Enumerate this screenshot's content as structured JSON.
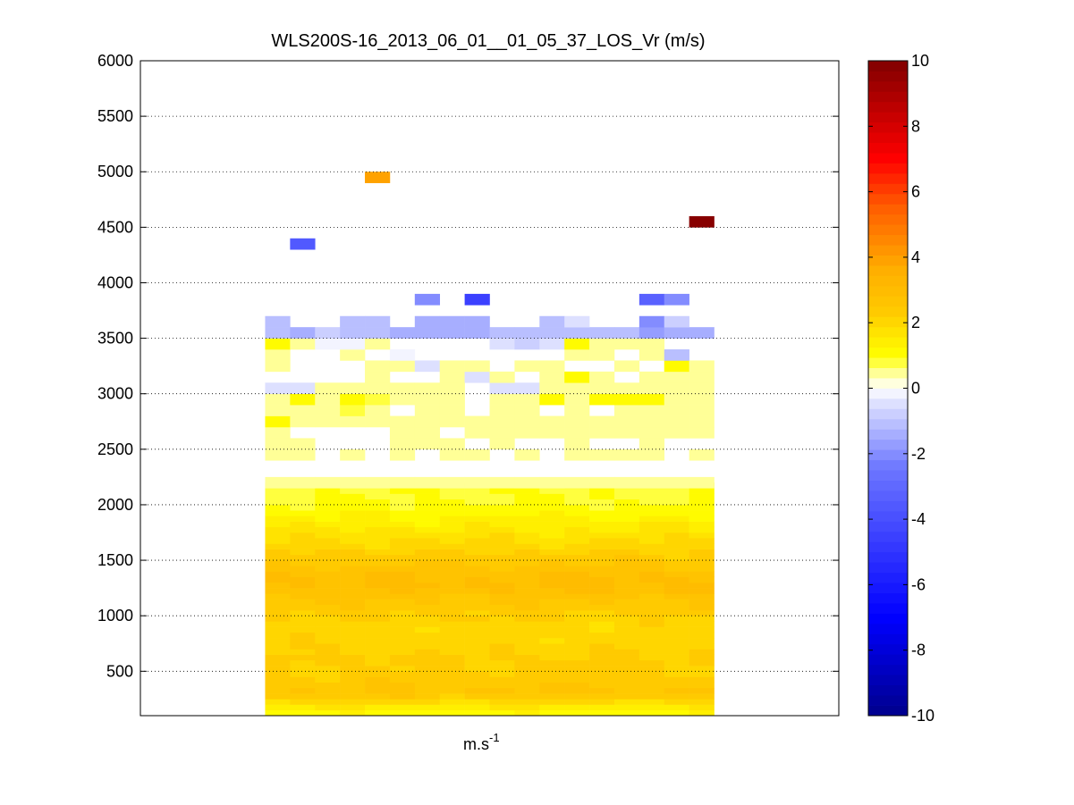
{
  "chart_data": {
    "type": "heatmap",
    "title": "WLS200S-16_2013_06_01__01_05_37_LOS_Vr (m/s)",
    "xlabel_base": "m.s",
    "xlabel_exp": "-1",
    "ylabel": "",
    "ylim": [
      100,
      6000
    ],
    "yticks": [
      500,
      1000,
      1500,
      2000,
      2500,
      3000,
      3500,
      4000,
      4500,
      5000,
      5500,
      6000
    ],
    "grid": "horizontal dotted",
    "colorbar": {
      "range": [
        -10,
        10
      ],
      "ticks": [
        -10,
        -8,
        -6,
        -4,
        -2,
        0,
        2,
        4,
        6,
        8,
        10
      ],
      "placement": "right"
    },
    "n_columns": 18,
    "column_range": [
      5,
      23
    ],
    "x_range": [
      0,
      28
    ],
    "low_layers": {
      "y_start": 100,
      "y_end": 2200,
      "step": 50,
      "profile": [
        [
          100,
          0.9
        ],
        [
          200,
          1.7
        ],
        [
          300,
          2.6
        ],
        [
          400,
          2.4
        ],
        [
          500,
          2.2
        ],
        [
          600,
          2.3
        ],
        [
          700,
          2.1
        ],
        [
          800,
          2.0
        ],
        [
          900,
          2.0
        ],
        [
          1000,
          2.2
        ],
        [
          1100,
          2.4
        ],
        [
          1200,
          2.7
        ],
        [
          1300,
          2.9
        ],
        [
          1400,
          2.7
        ],
        [
          1500,
          2.4
        ],
        [
          1600,
          2.1
        ],
        [
          1700,
          1.8
        ],
        [
          1800,
          1.5
        ],
        [
          1900,
          1.2
        ],
        [
          2000,
          1.0
        ],
        [
          2100,
          0.9
        ],
        [
          2200,
          0.9
        ]
      ]
    },
    "cells": [
      [
        5,
        2200,
        0.6
      ],
      [
        6,
        2200,
        0.6
      ],
      [
        7,
        2200,
        0.6
      ],
      [
        8,
        2200,
        0.6
      ],
      [
        9,
        2200,
        0.6
      ],
      [
        10,
        2200,
        0.6
      ],
      [
        11,
        2200,
        0.6
      ],
      [
        12,
        2200,
        0.6
      ],
      [
        13,
        2200,
        0.6
      ],
      [
        14,
        2200,
        0.6
      ],
      [
        15,
        2200,
        0.6
      ],
      [
        16,
        2200,
        0.6
      ],
      [
        17,
        2200,
        0.6
      ],
      [
        18,
        2200,
        0.6
      ],
      [
        19,
        2200,
        0.6
      ],
      [
        20,
        2200,
        0.6
      ],
      [
        21,
        2200,
        0.6
      ],
      [
        22,
        2200,
        0.6
      ],
      [
        5,
        2450,
        0.4
      ],
      [
        6,
        2450,
        0.4
      ],
      [
        8,
        2450,
        0.4
      ],
      [
        10,
        2450,
        0.4
      ],
      [
        12,
        2450,
        0.4
      ],
      [
        13,
        2450,
        0.4
      ],
      [
        15,
        2450,
        0.4
      ],
      [
        17,
        2450,
        0.4
      ],
      [
        18,
        2450,
        0.4
      ],
      [
        19,
        2450,
        0.4
      ],
      [
        20,
        2450,
        0.4
      ],
      [
        22,
        2450,
        0.4
      ],
      [
        5,
        2550,
        0.4
      ],
      [
        6,
        2550,
        0.4
      ],
      [
        10,
        2550,
        0.4
      ],
      [
        11,
        2550,
        0.4
      ],
      [
        12,
        2550,
        0.4
      ],
      [
        14,
        2550,
        0.4
      ],
      [
        17,
        2550,
        0.4
      ],
      [
        20,
        2550,
        0.4
      ],
      [
        5,
        2650,
        0.4
      ],
      [
        10,
        2650,
        0.4
      ],
      [
        11,
        2650,
        0.4
      ],
      [
        13,
        2650,
        0.4
      ],
      [
        14,
        2650,
        0.4
      ],
      [
        15,
        2650,
        0.4
      ],
      [
        16,
        2650,
        0.4
      ],
      [
        17,
        2650,
        0.4
      ],
      [
        18,
        2650,
        0.4
      ],
      [
        19,
        2650,
        0.4
      ],
      [
        20,
        2650,
        0.4
      ],
      [
        21,
        2650,
        0.4
      ],
      [
        22,
        2650,
        0.4
      ],
      [
        5,
        2750,
        1.1
      ],
      [
        6,
        2750,
        0.5
      ],
      [
        7,
        2750,
        0.5
      ],
      [
        8,
        2750,
        0.5
      ],
      [
        9,
        2750,
        0.5
      ],
      [
        10,
        2750,
        0.5
      ],
      [
        11,
        2750,
        0.5
      ],
      [
        12,
        2750,
        0.5
      ],
      [
        13,
        2750,
        0.5
      ],
      [
        14,
        2750,
        0.5
      ],
      [
        15,
        2750,
        0.5
      ],
      [
        16,
        2750,
        0.5
      ],
      [
        17,
        2750,
        0.5
      ],
      [
        18,
        2750,
        0.5
      ],
      [
        19,
        2750,
        0.5
      ],
      [
        20,
        2750,
        0.5
      ],
      [
        21,
        2750,
        0.5
      ],
      [
        22,
        2750,
        0.5
      ],
      [
        5,
        2850,
        0.5
      ],
      [
        6,
        2850,
        0.5
      ],
      [
        7,
        2850,
        0.5
      ],
      [
        8,
        2850,
        0.9
      ],
      [
        9,
        2850,
        0.5
      ],
      [
        11,
        2850,
        0.5
      ],
      [
        12,
        2850,
        0.5
      ],
      [
        14,
        2850,
        0.5
      ],
      [
        15,
        2850,
        0.5
      ],
      [
        17,
        2850,
        0.5
      ],
      [
        19,
        2850,
        0.5
      ],
      [
        20,
        2850,
        0.5
      ],
      [
        21,
        2850,
        0.5
      ],
      [
        22,
        2850,
        0.5
      ],
      [
        5,
        2950,
        0.5
      ],
      [
        6,
        2950,
        1.1
      ],
      [
        7,
        2950,
        0.5
      ],
      [
        8,
        2950,
        1.0
      ],
      [
        9,
        2950,
        0.9
      ],
      [
        10,
        2950,
        0.5
      ],
      [
        11,
        2950,
        0.5
      ],
      [
        12,
        2950,
        0.5
      ],
      [
        14,
        2950,
        0.5
      ],
      [
        15,
        2950,
        0.5
      ],
      [
        16,
        2950,
        1.0
      ],
      [
        17,
        2950,
        0.5
      ],
      [
        18,
        2950,
        1.0
      ],
      [
        19,
        2950,
        1.0
      ],
      [
        20,
        2950,
        1.0
      ],
      [
        21,
        2950,
        0.5
      ],
      [
        22,
        2950,
        0.5
      ],
      [
        5,
        3050,
        -0.4
      ],
      [
        6,
        3050,
        -0.4
      ],
      [
        7,
        3050,
        0.5
      ],
      [
        8,
        3050,
        0.5
      ],
      [
        9,
        3050,
        0.5
      ],
      [
        10,
        3050,
        0.5
      ],
      [
        11,
        3050,
        0.5
      ],
      [
        12,
        3050,
        0.5
      ],
      [
        14,
        3050,
        -0.4
      ],
      [
        15,
        3050,
        -0.5
      ],
      [
        16,
        3050,
        0.5
      ],
      [
        17,
        3050,
        0.5
      ],
      [
        18,
        3050,
        0.5
      ],
      [
        19,
        3050,
        0.5
      ],
      [
        20,
        3050,
        0.5
      ],
      [
        21,
        3050,
        0.5
      ],
      [
        22,
        3050,
        0.5
      ],
      [
        9,
        3150,
        0.5
      ],
      [
        12,
        3150,
        0.5
      ],
      [
        13,
        3150,
        -0.4
      ],
      [
        14,
        3150,
        0.5
      ],
      [
        16,
        3150,
        0.5
      ],
      [
        17,
        3150,
        1.1
      ],
      [
        18,
        3150,
        0.5
      ],
      [
        20,
        3150,
        0.5
      ],
      [
        21,
        3150,
        0.5
      ],
      [
        22,
        3150,
        0.5
      ],
      [
        5,
        3250,
        0.5
      ],
      [
        9,
        3250,
        0.5
      ],
      [
        10,
        3250,
        0.5
      ],
      [
        11,
        3250,
        -0.4
      ],
      [
        12,
        3250,
        0.5
      ],
      [
        13,
        3250,
        0.5
      ],
      [
        15,
        3250,
        0.5
      ],
      [
        16,
        3250,
        0.5
      ],
      [
        19,
        3250,
        0.5
      ],
      [
        21,
        3250,
        1.0
      ],
      [
        22,
        3250,
        0.5
      ],
      [
        5,
        3350,
        0.4
      ],
      [
        8,
        3350,
        0.4
      ],
      [
        10,
        3350,
        -0.3
      ],
      [
        17,
        3350,
        0.4
      ],
      [
        18,
        3350,
        0.4
      ],
      [
        20,
        3350,
        0.5
      ],
      [
        21,
        3350,
        -1.2
      ],
      [
        5,
        3450,
        1.1
      ],
      [
        6,
        3450,
        0.5
      ],
      [
        7,
        3450,
        -0.3
      ],
      [
        8,
        3450,
        -0.3
      ],
      [
        9,
        3450,
        0.5
      ],
      [
        14,
        3450,
        -0.5
      ],
      [
        15,
        3450,
        -0.7
      ],
      [
        16,
        3450,
        -0.5
      ],
      [
        17,
        3450,
        1.1
      ],
      [
        18,
        3450,
        0.5
      ],
      [
        19,
        3450,
        0.5
      ],
      [
        20,
        3450,
        0.5
      ],
      [
        5,
        3550,
        -1.2
      ],
      [
        6,
        3550,
        -1.3
      ],
      [
        7,
        3550,
        -0.8
      ],
      [
        8,
        3550,
        -1.0
      ],
      [
        9,
        3550,
        -1.2
      ],
      [
        10,
        3550,
        -1.3
      ],
      [
        11,
        3550,
        -1.4
      ],
      [
        12,
        3550,
        -1.3
      ],
      [
        13,
        3550,
        -1.5
      ],
      [
        14,
        3550,
        -1.2
      ],
      [
        15,
        3550,
        -1.1
      ],
      [
        16,
        3550,
        -1.0
      ],
      [
        17,
        3550,
        -1.1
      ],
      [
        18,
        3550,
        -1.2
      ],
      [
        19,
        3550,
        -1.1
      ],
      [
        20,
        3550,
        -1.6
      ],
      [
        21,
        3550,
        -1.3
      ],
      [
        22,
        3550,
        -1.5
      ],
      [
        5,
        3650,
        -1.1
      ],
      [
        8,
        3650,
        -1.0
      ],
      [
        9,
        3650,
        -1.2
      ],
      [
        11,
        3650,
        -1.5
      ],
      [
        12,
        3650,
        -1.3
      ],
      [
        13,
        3650,
        -1.5
      ],
      [
        16,
        3650,
        -1.0
      ],
      [
        17,
        3650,
        -0.5
      ],
      [
        20,
        3650,
        -2.0
      ],
      [
        21,
        3650,
        -0.9
      ],
      [
        11,
        3850,
        -2.0
      ],
      [
        13,
        3850,
        -4.6
      ],
      [
        20,
        3850,
        -3.4
      ],
      [
        21,
        3850,
        -2.0
      ],
      [
        6,
        4350,
        -3.6
      ],
      [
        9,
        4950,
        3.8
      ],
      [
        22,
        4550,
        9.8
      ]
    ]
  }
}
